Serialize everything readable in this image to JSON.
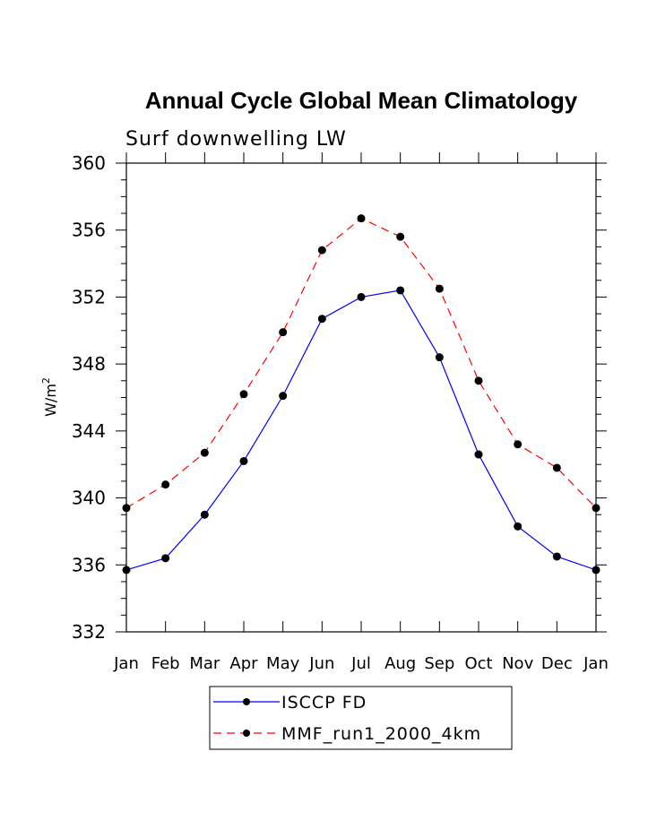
{
  "chart_data": {
    "type": "line",
    "title": "Annual Cycle Global Mean Climatology",
    "subtitle": "Surf downwelling LW",
    "ylabel": "W/m",
    "ylabel_sup": "2",
    "xlabel": "",
    "categories": [
      "Jan",
      "Feb",
      "Mar",
      "Apr",
      "May",
      "Jun",
      "Jul",
      "Aug",
      "Sep",
      "Oct",
      "Nov",
      "Dec",
      "Jan"
    ],
    "ylim": [
      332,
      360
    ],
    "yticks": [
      332,
      336,
      340,
      344,
      348,
      352,
      356,
      360
    ],
    "series": [
      {
        "name": "ISCCP FD",
        "color": "#0000ff",
        "dash": "solid",
        "values": [
          335.7,
          336.4,
          339.0,
          342.2,
          346.1,
          350.7,
          352.0,
          352.4,
          348.4,
          342.6,
          338.3,
          336.5,
          335.7
        ]
      },
      {
        "name": "MMF_run1_2000_4km",
        "color": "#ff0000",
        "dash": "dashed",
        "values": [
          339.4,
          340.8,
          342.7,
          346.2,
          349.9,
          354.8,
          356.7,
          355.6,
          352.5,
          347.0,
          343.2,
          341.8,
          339.4
        ]
      }
    ],
    "grid": false,
    "legend_position": "bottom"
  }
}
